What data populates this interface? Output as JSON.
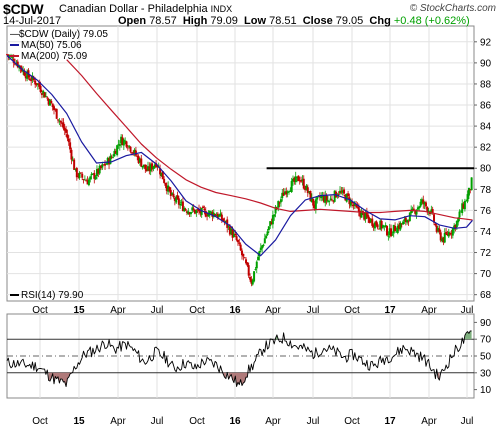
{
  "header": {
    "symbol": "$CDW",
    "name": "Canadian Dollar - Philadelphia",
    "exchange": "INDX",
    "brand": "© StockCharts.com",
    "date": "14-Jul-2017",
    "open_label": "Open",
    "open": "78.57",
    "high_label": "High",
    "high": "79.09",
    "low_label": "Low",
    "low": "78.51",
    "close_label": "Close",
    "close": "79.05",
    "chg_label": "Chg",
    "chg": "+0.48 (+0.62%)",
    "chg_color": "#00a000"
  },
  "legend": {
    "main": "$CDW (Daily) 79.05",
    "ma50": "MA(50) 75.06",
    "ma200": "MA(200) 75.09",
    "rsi": "RSI(14) 79.90"
  },
  "colors": {
    "up": "#00a000",
    "down": "#c00000",
    "ma50": "#1a1aa0",
    "ma200": "#c0182a",
    "rsi_line": "#000000",
    "rsi_fill": "#b07a7a",
    "grid": "#e2e2e2",
    "resistance": "#000000"
  },
  "chart_data": [
    {
      "type": "candlestick",
      "title": "$CDW Canadian Dollar - Philadelphia INDX",
      "y_ticks": [
        68,
        70,
        72,
        74,
        76,
        78,
        80,
        82,
        84,
        86,
        88,
        90,
        92
      ],
      "ylim": [
        67.4,
        93.5
      ],
      "x_tick_labels": [
        "Oct",
        "15",
        "Apr",
        "Jul",
        "Oct",
        "16",
        "Apr",
        "Jul",
        "Oct",
        "17",
        "Apr",
        "Jul"
      ],
      "resistance_level": 80,
      "price_path": [
        [
          0,
          90.8
        ],
        [
          0.3,
          90.1
        ],
        [
          0.7,
          88.7
        ],
        [
          1.0,
          88.1
        ],
        [
          1.5,
          86.0
        ],
        [
          2.0,
          83.2
        ],
        [
          2.3,
          79.5
        ],
        [
          2.7,
          78.8
        ],
        [
          3.0,
          79.5
        ],
        [
          3.5,
          81.0
        ],
        [
          3.8,
          82.7
        ],
        [
          4.0,
          82.5
        ],
        [
          4.3,
          81.3
        ],
        [
          4.7,
          79.7
        ],
        [
          5.0,
          80.6
        ],
        [
          5.5,
          77.3
        ],
        [
          6.0,
          76.1
        ],
        [
          6.5,
          75.8
        ],
        [
          7.0,
          75.7
        ],
        [
          7.3,
          74.9
        ],
        [
          7.7,
          73.1
        ],
        [
          8.0,
          70.8
        ],
        [
          8.2,
          69.2
        ],
        [
          8.4,
          71.5
        ],
        [
          8.7,
          73.8
        ],
        [
          9.0,
          76.0
        ],
        [
          9.3,
          77.8
        ],
        [
          9.6,
          78.6
        ],
        [
          9.8,
          79.1
        ],
        [
          10.0,
          78.2
        ],
        [
          10.3,
          76.4
        ],
        [
          10.5,
          77.3
        ],
        [
          10.8,
          76.9
        ],
        [
          11.1,
          77.8
        ],
        [
          11.4,
          77.2
        ],
        [
          11.7,
          76.1
        ],
        [
          12.0,
          75.4
        ],
        [
          12.3,
          74.8
        ],
        [
          12.6,
          74.5
        ],
        [
          12.8,
          73.8
        ],
        [
          13.0,
          74.3
        ],
        [
          13.3,
          74.8
        ],
        [
          13.6,
          75.8
        ],
        [
          13.9,
          76.8
        ],
        [
          14.2,
          75.9
        ],
        [
          14.4,
          74.1
        ],
        [
          14.6,
          73.2
        ],
        [
          14.8,
          73.9
        ],
        [
          14.9,
          74.1
        ],
        [
          15.1,
          75.0
        ],
        [
          15.2,
          75.9
        ],
        [
          15.35,
          76.8
        ],
        [
          15.5,
          77.9
        ],
        [
          15.6,
          79.05
        ]
      ],
      "ma50_path": [
        [
          0,
          90.7
        ],
        [
          0.5,
          89.4
        ],
        [
          1.0,
          88.4
        ],
        [
          1.5,
          87.0
        ],
        [
          2.0,
          85.2
        ],
        [
          2.5,
          82.5
        ],
        [
          3.0,
          80.5
        ],
        [
          3.5,
          80.6
        ],
        [
          4.0,
          81.2
        ],
        [
          4.5,
          81.5
        ],
        [
          5.0,
          80.4
        ],
        [
          5.5,
          78.8
        ],
        [
          6.0,
          76.9
        ],
        [
          6.5,
          76.0
        ],
        [
          7.0,
          75.4
        ],
        [
          7.5,
          74.5
        ],
        [
          8.0,
          72.8
        ],
        [
          8.5,
          71.7
        ],
        [
          9.0,
          73.2
        ],
        [
          9.5,
          75.5
        ],
        [
          10.0,
          77.0
        ],
        [
          10.5,
          77.4
        ],
        [
          11.0,
          77.5
        ],
        [
          11.5,
          77.0
        ],
        [
          12.0,
          76.0
        ],
        [
          12.5,
          75.2
        ],
        [
          13.0,
          75.1
        ],
        [
          13.5,
          75.5
        ],
        [
          14.0,
          75.4
        ],
        [
          14.5,
          74.6
        ],
        [
          15.0,
          74.3
        ],
        [
          15.4,
          74.4
        ],
        [
          15.6,
          75.06
        ]
      ],
      "ma200_path": [
        [
          2.0,
          90.3
        ],
        [
          2.5,
          88.8
        ],
        [
          3.0,
          87.1
        ],
        [
          3.5,
          85.5
        ],
        [
          4.0,
          83.9
        ],
        [
          4.5,
          82.3
        ],
        [
          5.0,
          81.0
        ],
        [
          5.5,
          79.9
        ],
        [
          6.0,
          78.9
        ],
        [
          6.5,
          78.2
        ],
        [
          7.0,
          77.7
        ],
        [
          7.5,
          77.4
        ],
        [
          8.0,
          77.1
        ],
        [
          8.5,
          76.7
        ],
        [
          9.0,
          76.2
        ],
        [
          9.5,
          75.9
        ],
        [
          10.0,
          76.0
        ],
        [
          10.5,
          76.1
        ],
        [
          11.0,
          76.0
        ],
        [
          11.5,
          75.9
        ],
        [
          12.0,
          75.8
        ],
        [
          12.5,
          75.8
        ],
        [
          13.0,
          75.9
        ],
        [
          13.5,
          76.0
        ],
        [
          14.0,
          75.9
        ],
        [
          14.5,
          75.6
        ],
        [
          15.0,
          75.3
        ],
        [
          15.3,
          75.2
        ],
        [
          15.6,
          75.09
        ]
      ]
    },
    {
      "type": "line",
      "title": "RSI(14) 79.90",
      "y_ticks": [
        10,
        30,
        50,
        70,
        90
      ],
      "ylim": [
        0,
        100
      ],
      "reference_lines": [
        30,
        50,
        70
      ],
      "x_tick_labels": [
        "Oct",
        "15",
        "Apr",
        "Jul",
        "Oct",
        "16",
        "Apr",
        "Jul",
        "Oct",
        "17",
        "Apr",
        "Jul"
      ],
      "rsi_path": [
        [
          0,
          42
        ],
        [
          0.5,
          40
        ],
        [
          1.0,
          38
        ],
        [
          1.3,
          30
        ],
        [
          1.6,
          22
        ],
        [
          2.0,
          16
        ],
        [
          2.3,
          38
        ],
        [
          2.6,
          52
        ],
        [
          3.0,
          58
        ],
        [
          3.3,
          66
        ],
        [
          3.6,
          58
        ],
        [
          4.0,
          64
        ],
        [
          4.3,
          55
        ],
        [
          4.6,
          42
        ],
        [
          5.0,
          55
        ],
        [
          5.3,
          48
        ],
        [
          5.6,
          35
        ],
        [
          6.0,
          42
        ],
        [
          6.3,
          35
        ],
        [
          6.6,
          44
        ],
        [
          7.0,
          40
        ],
        [
          7.3,
          30
        ],
        [
          7.6,
          22
        ],
        [
          7.8,
          14
        ],
        [
          8.0,
          28
        ],
        [
          8.3,
          42
        ],
        [
          8.6,
          60
        ],
        [
          9.0,
          68
        ],
        [
          9.3,
          72
        ],
        [
          9.6,
          63
        ],
        [
          10.0,
          58
        ],
        [
          10.3,
          52
        ],
        [
          10.6,
          60
        ],
        [
          11.0,
          55
        ],
        [
          11.3,
          48
        ],
        [
          11.6,
          52
        ],
        [
          12.0,
          42
        ],
        [
          12.3,
          38
        ],
        [
          12.6,
          46
        ],
        [
          13.0,
          52
        ],
        [
          13.3,
          60
        ],
        [
          13.6,
          55
        ],
        [
          14.0,
          46
        ],
        [
          14.3,
          32
        ],
        [
          14.5,
          24
        ],
        [
          14.7,
          38
        ],
        [
          15.0,
          55
        ],
        [
          15.2,
          64
        ],
        [
          15.4,
          72
        ],
        [
          15.6,
          79.9
        ]
      ]
    }
  ]
}
